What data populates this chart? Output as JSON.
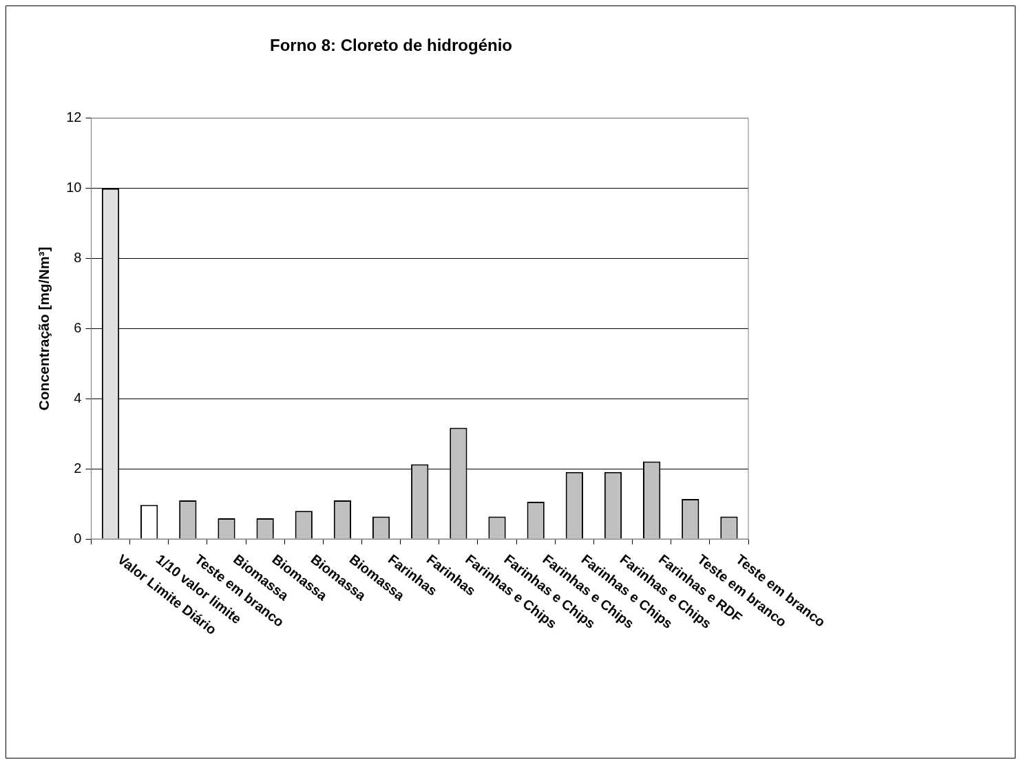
{
  "chart_data": {
    "type": "bar",
    "title": "Forno 8: Cloreto de hidrogénio",
    "ylabel": "Concentração [mg/Nm³]",
    "categories": [
      "Valor Limite Diário",
      "1/10 valor limite",
      "Teste em branco",
      "Biomassa",
      "Biomassa",
      "Biomassa",
      "Biomassa",
      "Farinhas",
      "Farinhas",
      "Farinhas e Chips",
      "Farinhas e Chips",
      "Farinhas e Chips",
      "Farinhas e Chips",
      "Farinhas e Chips",
      "Farinhas e RDF",
      "Teste em branco",
      "Teste em branco"
    ],
    "values": [
      10,
      0.97,
      1.1,
      0.59,
      0.59,
      0.8,
      1.1,
      0.64,
      2.13,
      3.17,
      0.64,
      1.06,
      1.91,
      1.91,
      2.21,
      1.14,
      0.64
    ],
    "colors": [
      "#e0e0e0",
      "#ffffff",
      "#c0c0c0",
      "#c0c0c0",
      "#c0c0c0",
      "#c0c0c0",
      "#c0c0c0",
      "#c0c0c0",
      "#c0c0c0",
      "#c0c0c0",
      "#c0c0c0",
      "#c0c0c0",
      "#c0c0c0",
      "#c0c0c0",
      "#c0c0c0",
      "#c0c0c0",
      "#c0c0c0"
    ],
    "ylim": [
      0,
      12
    ],
    "yticks": [
      0,
      2,
      4,
      6,
      8,
      10,
      12
    ],
    "grid": "y",
    "legend": false
  }
}
